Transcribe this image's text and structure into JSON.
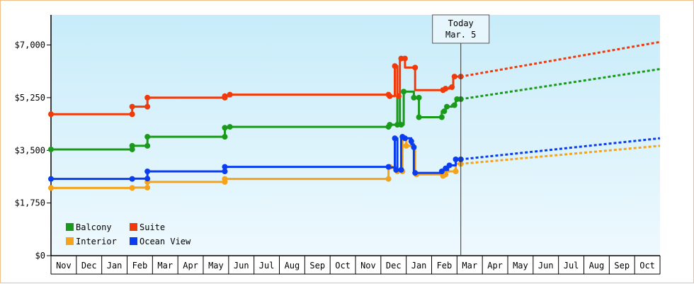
{
  "chart_data": {
    "type": "line",
    "title": "",
    "xlabel": "",
    "ylabel": "",
    "y_ticks": [
      "$0",
      "$1,750",
      "$3,500",
      "$5,250",
      "$7,000"
    ],
    "y_tick_values": [
      0,
      1750,
      3500,
      5250,
      7000
    ],
    "ylim": [
      0,
      8000
    ],
    "x_ticks": [
      "Nov",
      "Dec",
      "Jan",
      "Feb",
      "Mar",
      "Apr",
      "May",
      "Jun",
      "Jul",
      "Aug",
      "Sep",
      "Oct",
      "Nov",
      "Dec",
      "Jan",
      "Feb",
      "Mar",
      "Apr",
      "May",
      "Jun",
      "Jul",
      "Aug",
      "Sep",
      "Oct"
    ],
    "xlim_months": [
      0,
      24
    ],
    "today": {
      "line1": "Today",
      "line2": "Mar. 5",
      "x": 16.15
    },
    "legend_placement": "bottom-left",
    "background_gradient": [
      "#c8ecfa",
      "#eef9fe"
    ],
    "grid": "none",
    "series": [
      {
        "name": "Balcony",
        "color": "#1a9a1a",
        "points": [
          [
            0,
            3530
          ],
          [
            3.2,
            3530
          ],
          [
            3.2,
            3650
          ],
          [
            3.8,
            3650
          ],
          [
            3.8,
            3950
          ],
          [
            6.85,
            3950
          ],
          [
            6.85,
            4250
          ],
          [
            7.05,
            4250
          ],
          [
            7.05,
            4280
          ],
          [
            13.3,
            4280
          ],
          [
            13.3,
            4350
          ],
          [
            13.65,
            4350
          ],
          [
            13.65,
            5300
          ],
          [
            13.75,
            5300
          ],
          [
            13.75,
            4350
          ],
          [
            13.9,
            4350
          ],
          [
            13.9,
            5450
          ],
          [
            14.3,
            5450
          ],
          [
            14.3,
            5250
          ],
          [
            14.5,
            5250
          ],
          [
            14.5,
            4600
          ],
          [
            15.4,
            4600
          ],
          [
            15.4,
            4800
          ],
          [
            15.55,
            4800
          ],
          [
            15.55,
            4950
          ],
          [
            15.8,
            4950
          ],
          [
            15.8,
            5000
          ],
          [
            15.95,
            5000
          ],
          [
            15.95,
            5200
          ],
          [
            16.15,
            5200
          ]
        ],
        "markers": [
          [
            0,
            3530
          ],
          [
            3.2,
            3530
          ],
          [
            3.2,
            3650
          ],
          [
            3.8,
            3650
          ],
          [
            3.8,
            3950
          ],
          [
            6.85,
            3950
          ],
          [
            6.85,
            4250
          ],
          [
            7.05,
            4280
          ],
          [
            13.3,
            4280
          ],
          [
            13.35,
            4350
          ],
          [
            13.65,
            4350
          ],
          [
            13.8,
            4350
          ],
          [
            13.9,
            5450
          ],
          [
            14.3,
            5250
          ],
          [
            14.5,
            5250
          ],
          [
            14.5,
            4600
          ],
          [
            15.4,
            4600
          ],
          [
            15.5,
            4800
          ],
          [
            15.6,
            4950
          ],
          [
            15.9,
            5000
          ],
          [
            16.0,
            5200
          ],
          [
            16.15,
            5200
          ]
        ],
        "projection": [
          [
            16.15,
            5200
          ],
          [
            24,
            6200
          ]
        ]
      },
      {
        "name": "Suite",
        "color": "#f03a0a",
        "points": [
          [
            0,
            4700
          ],
          [
            3.2,
            4700
          ],
          [
            3.2,
            4950
          ],
          [
            3.8,
            4950
          ],
          [
            3.8,
            5250
          ],
          [
            6.85,
            5250
          ],
          [
            6.85,
            5300
          ],
          [
            7.05,
            5300
          ],
          [
            7.05,
            5350
          ],
          [
            13.3,
            5350
          ],
          [
            13.3,
            5300
          ],
          [
            13.55,
            5300
          ],
          [
            13.55,
            6300
          ],
          [
            13.65,
            6300
          ],
          [
            13.65,
            5300
          ],
          [
            13.75,
            5300
          ],
          [
            13.75,
            6550
          ],
          [
            13.95,
            6550
          ],
          [
            13.95,
            6250
          ],
          [
            14.35,
            6250
          ],
          [
            14.35,
            5500
          ],
          [
            15.4,
            5500
          ],
          [
            15.4,
            5550
          ],
          [
            15.7,
            5550
          ],
          [
            15.7,
            5600
          ],
          [
            15.85,
            5600
          ],
          [
            15.85,
            5950
          ],
          [
            16.15,
            5950
          ]
        ],
        "markers": [
          [
            0,
            4700
          ],
          [
            3.2,
            4700
          ],
          [
            3.2,
            4950
          ],
          [
            3.8,
            4950
          ],
          [
            3.8,
            5250
          ],
          [
            6.85,
            5250
          ],
          [
            6.85,
            5300
          ],
          [
            7.05,
            5350
          ],
          [
            13.3,
            5350
          ],
          [
            13.35,
            5300
          ],
          [
            13.55,
            6300
          ],
          [
            13.7,
            5300
          ],
          [
            13.8,
            6550
          ],
          [
            13.95,
            6550
          ],
          [
            14.35,
            6250
          ],
          [
            15.45,
            5500
          ],
          [
            15.55,
            5550
          ],
          [
            15.8,
            5600
          ],
          [
            15.9,
            5950
          ],
          [
            16.15,
            5950
          ]
        ],
        "projection": [
          [
            16.15,
            5950
          ],
          [
            24,
            7100
          ]
        ]
      },
      {
        "name": "Interior",
        "color": "#f5a31a",
        "points": [
          [
            0,
            2250
          ],
          [
            3.2,
            2250
          ],
          [
            3.2,
            2260
          ],
          [
            3.8,
            2260
          ],
          [
            3.8,
            2450
          ],
          [
            6.85,
            2450
          ],
          [
            6.85,
            2550
          ],
          [
            13.3,
            2550
          ],
          [
            13.3,
            2950
          ],
          [
            13.6,
            2950
          ],
          [
            13.6,
            2800
          ],
          [
            13.85,
            2800
          ],
          [
            13.85,
            3850
          ],
          [
            14.0,
            3850
          ],
          [
            14.0,
            3650
          ],
          [
            14.35,
            3650
          ],
          [
            14.35,
            2700
          ],
          [
            15.4,
            2700
          ],
          [
            15.4,
            2650
          ],
          [
            15.55,
            2650
          ],
          [
            15.55,
            2800
          ],
          [
            15.95,
            2800
          ],
          [
            15.95,
            3050
          ],
          [
            16.15,
            3050
          ]
        ],
        "markers": [
          [
            0,
            2250
          ],
          [
            3.2,
            2250
          ],
          [
            3.8,
            2260
          ],
          [
            3.8,
            2450
          ],
          [
            6.85,
            2450
          ],
          [
            6.85,
            2550
          ],
          [
            13.3,
            2550
          ],
          [
            13.35,
            2950
          ],
          [
            13.65,
            2800
          ],
          [
            13.85,
            2800
          ],
          [
            14.0,
            3650
          ],
          [
            14.4,
            2700
          ],
          [
            15.45,
            2650
          ],
          [
            15.55,
            2700
          ],
          [
            15.95,
            2800
          ],
          [
            16.15,
            3050
          ]
        ],
        "projection": [
          [
            16.15,
            3050
          ],
          [
            24,
            3650
          ]
        ]
      },
      {
        "name": "Ocean View",
        "color": "#0a3cf0",
        "points": [
          [
            0,
            2550
          ],
          [
            3.2,
            2550
          ],
          [
            3.2,
            2560
          ],
          [
            3.8,
            2560
          ],
          [
            3.8,
            2800
          ],
          [
            6.85,
            2800
          ],
          [
            6.85,
            2950
          ],
          [
            13.3,
            2950
          ],
          [
            13.3,
            2930
          ],
          [
            13.55,
            2930
          ],
          [
            13.55,
            3900
          ],
          [
            13.65,
            3900
          ],
          [
            13.65,
            2850
          ],
          [
            13.8,
            2850
          ],
          [
            13.8,
            3950
          ],
          [
            13.9,
            3950
          ],
          [
            13.9,
            3900
          ],
          [
            14.2,
            3900
          ],
          [
            14.2,
            3700
          ],
          [
            14.3,
            3700
          ],
          [
            14.3,
            2750
          ],
          [
            15.4,
            2750
          ],
          [
            15.4,
            2850
          ],
          [
            15.65,
            2850
          ],
          [
            15.65,
            3000
          ],
          [
            15.95,
            3000
          ],
          [
            15.95,
            3200
          ],
          [
            16.15,
            3200
          ]
        ],
        "markers": [
          [
            0,
            2550
          ],
          [
            3.2,
            2550
          ],
          [
            3.8,
            2560
          ],
          [
            3.8,
            2800
          ],
          [
            6.85,
            2800
          ],
          [
            6.85,
            2950
          ],
          [
            13.3,
            2950
          ],
          [
            13.55,
            3900
          ],
          [
            13.6,
            2850
          ],
          [
            13.8,
            2850
          ],
          [
            13.85,
            3950
          ],
          [
            13.95,
            3900
          ],
          [
            14.2,
            3800
          ],
          [
            14.3,
            3600
          ],
          [
            14.35,
            2750
          ],
          [
            15.4,
            2800
          ],
          [
            15.55,
            2900
          ],
          [
            15.7,
            3000
          ],
          [
            15.95,
            3200
          ],
          [
            16.15,
            3200
          ]
        ],
        "projection": [
          [
            16.15,
            3200
          ],
          [
            24,
            3900
          ]
        ]
      }
    ],
    "legend": [
      {
        "label": "Balcony",
        "color": "#1a9a1a"
      },
      {
        "label": "Suite",
        "color": "#f03a0a"
      },
      {
        "label": "Interior",
        "color": "#f5a31a"
      },
      {
        "label": "Ocean View",
        "color": "#0a3cf0"
      }
    ]
  }
}
